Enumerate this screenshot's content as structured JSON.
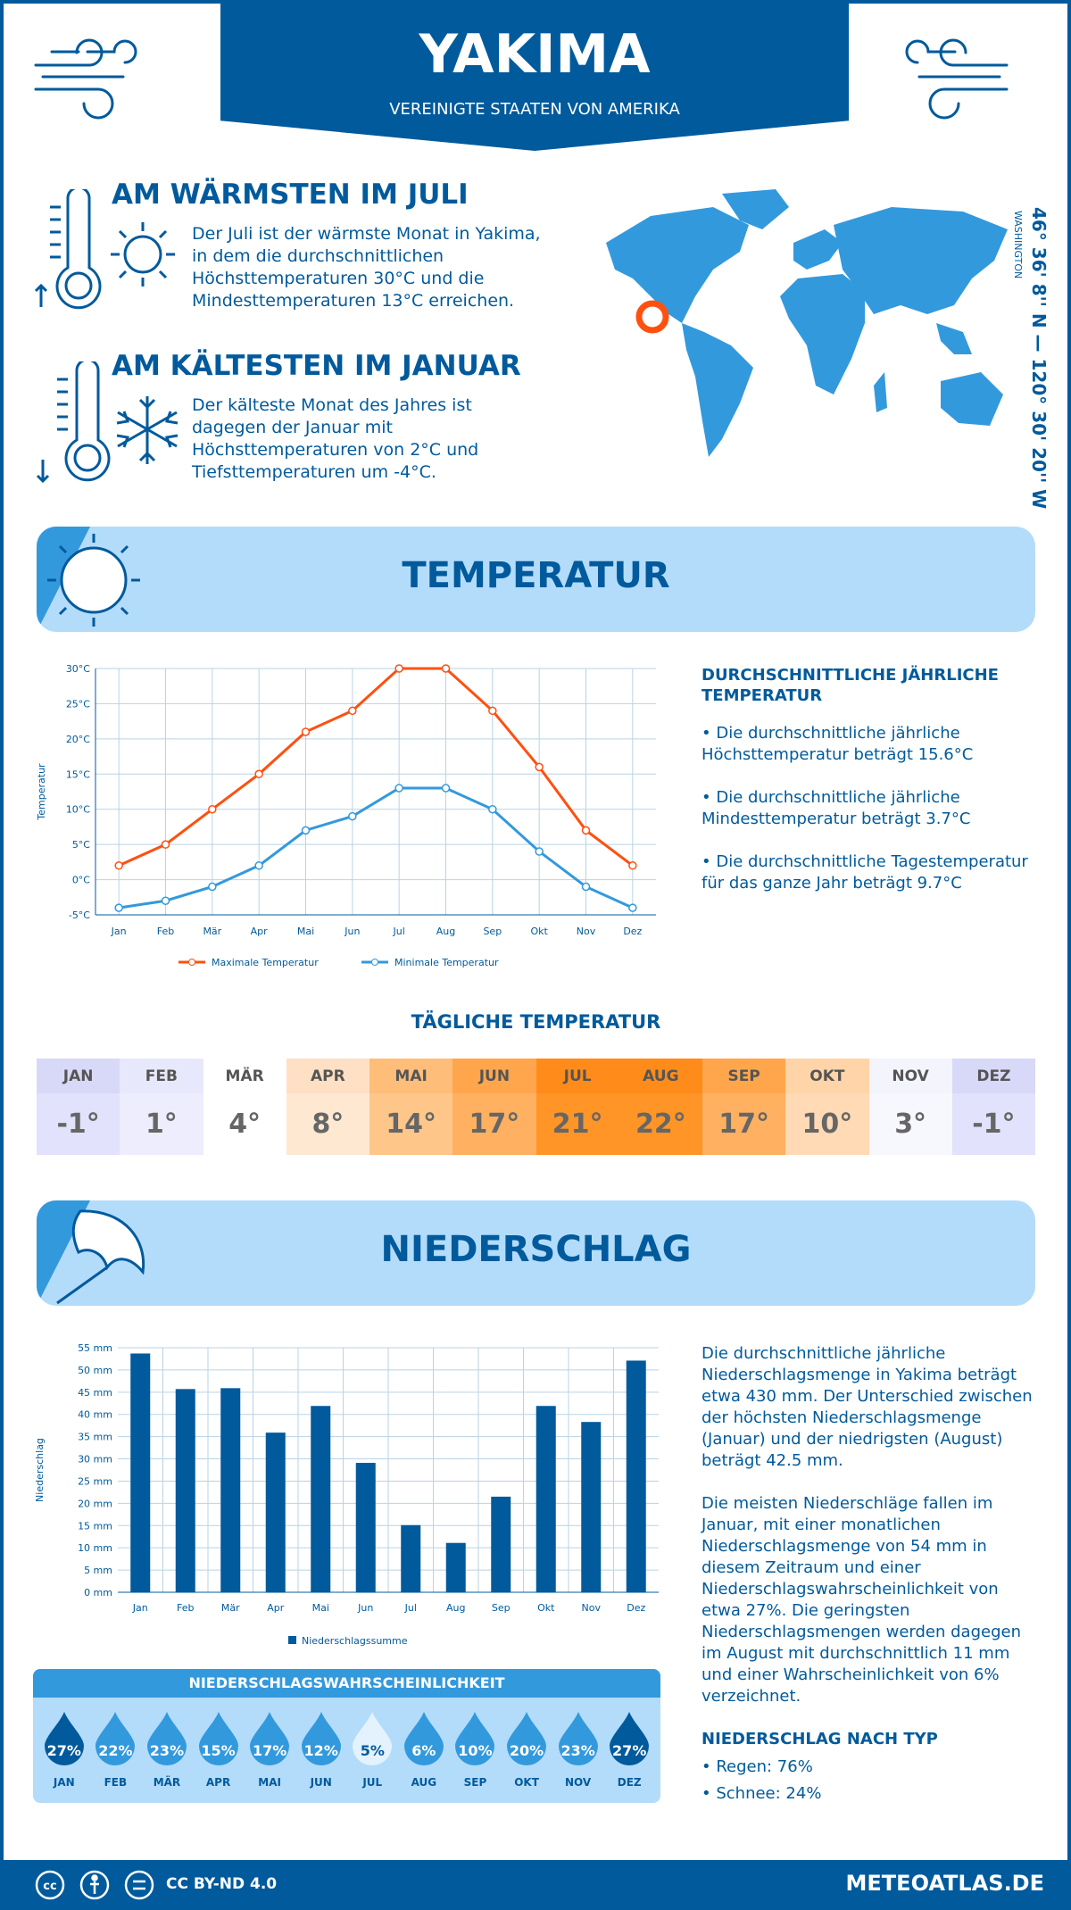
{
  "header": {
    "city": "YAKIMA",
    "country": "VEREINIGTE STAATEN VON AMERIKA"
  },
  "warmest": {
    "title": "AM WÄRMSTEN IM JULI",
    "text": "Der Juli ist der wärmste Monat in Yakima, in dem die durchschnittlichen Höchsttemperaturen 30°C und die Mindesttemperaturen 13°C erreichen."
  },
  "coldest": {
    "title": "AM KÄLTESTEN IM JANUAR",
    "text": "Der kälteste Monat des Jahres ist dagegen der Januar mit Höchsttemperaturen von 2°C und Tiefsttemperaturen um -4°C."
  },
  "location": {
    "coords": "46° 36' 8'' N — 120° 30' 20'' W",
    "region": "WASHINGTON"
  },
  "colors": {
    "dark_blue": "#005a9c",
    "light_blue": "#b3dcfa",
    "mid_blue": "#3399dd",
    "max_line": "#ff5010",
    "min_line": "#3399dd"
  },
  "temperature": {
    "title": "TEMPERATUR",
    "summary_title": "DURCHSCHNITTLICHE JÄHRLICHE TEMPERATUR",
    "bullets": [
      "• Die durchschnittliche jährliche Höchsttemperatur beträgt 15.6°C",
      "• Die durchschnittliche jährliche Mindesttemperatur beträgt 3.7°C",
      "• Die durchschnittliche Tagestemperatur für das ganze Jahr beträgt 9.7°C"
    ]
  },
  "daily": {
    "title": "TÄGLICHE TEMPERATUR",
    "months": [
      "JAN",
      "FEB",
      "MÄR",
      "APR",
      "MAI",
      "JUN",
      "JUL",
      "AUG",
      "SEP",
      "OKT",
      "NOV",
      "DEZ"
    ],
    "values": [
      "-1°",
      "1°",
      "4°",
      "8°",
      "14°",
      "17°",
      "21°",
      "22°",
      "17°",
      "10°",
      "3°",
      "-1°"
    ],
    "header_colors": [
      "#d8d8f8",
      "#e8e8fc",
      "#ffffff",
      "#ffe0c4",
      "#ffbd7a",
      "#ffa64d",
      "#ff8c1a",
      "#ff8c1a",
      "#ffa64d",
      "#ffd4a8",
      "#f4f4fc",
      "#d8d8f8"
    ],
    "value_colors": [
      "#e2e2fc",
      "#ededfe",
      "#ffffff",
      "#ffe8d2",
      "#ffc68a",
      "#ffb060",
      "#ff9526",
      "#ff9526",
      "#ffb060",
      "#ffdab4",
      "#f7f7fe",
      "#e2e2fc"
    ]
  },
  "precipitation": {
    "title": "NIEDERSCHLAG",
    "paragraphs": [
      "Die durchschnittliche jährliche Niederschlagsmenge in Yakima beträgt etwa 430 mm. Der Unterschied zwischen der höchsten Niederschlagsmenge (Januar) und der niedrigsten (August) beträgt 42.5 mm.",
      "Die meisten Niederschläge fallen im Januar, mit einer monatlichen Niederschlagsmenge von 54 mm in diesem Zeitraum und einer Niederschlagswahrscheinlichkeit von etwa 27%. Die geringsten Niederschlagsmengen werden dagegen im August mit durchschnittlich 11 mm und einer Wahrscheinlichkeit von 6% verzeichnet."
    ],
    "type_title": "NIEDERSCHLAG NACH TYP",
    "types": [
      "• Regen: 76%",
      "• Schnee: 24%"
    ],
    "prob_title": "NIEDERSCHLAGSWAHRSCHEINLICHKEIT",
    "prob_values": [
      "27%",
      "22%",
      "23%",
      "15%",
      "17%",
      "12%",
      "5%",
      "6%",
      "10%",
      "20%",
      "23%",
      "27%"
    ]
  },
  "footer": {
    "license": "CC BY-ND 4.0",
    "site": "METEOATLAS.DE"
  },
  "chart_data": [
    {
      "type": "line",
      "xlabel": "",
      "ylabel": "Temperatur",
      "categories": [
        "Jan",
        "Feb",
        "Mär",
        "Apr",
        "Mai",
        "Jun",
        "Jul",
        "Aug",
        "Sep",
        "Okt",
        "Nov",
        "Dez"
      ],
      "yticks": [
        "-5°C",
        "0°C",
        "5°C",
        "10°C",
        "15°C",
        "20°C",
        "25°C",
        "30°C"
      ],
      "ylim": [
        -5,
        30
      ],
      "grid": true,
      "legend": "bottom",
      "series": [
        {
          "name": "Maximale Temperatur",
          "values": [
            2,
            5,
            10,
            15,
            21,
            24,
            30,
            30,
            24,
            16,
            7,
            2
          ]
        },
        {
          "name": "Minimale Temperatur",
          "values": [
            -4,
            -3,
            -1,
            2,
            7,
            9,
            13,
            13,
            10,
            4,
            -1,
            -4
          ]
        }
      ]
    },
    {
      "type": "bar",
      "xlabel": "",
      "ylabel": "Niederschlag",
      "categories": [
        "Jan",
        "Feb",
        "Mär",
        "Apr",
        "Mai",
        "Jun",
        "Jul",
        "Aug",
        "Sep",
        "Okt",
        "Nov",
        "Dez"
      ],
      "yticks": [
        "0 mm",
        "5 mm",
        "10 mm",
        "15 mm",
        "20 mm",
        "25 mm",
        "30 mm",
        "35 mm",
        "40 mm",
        "45 mm",
        "50 mm",
        "55 mm"
      ],
      "ylim": [
        0,
        55
      ],
      "grid": true,
      "legend": "bottom",
      "series": [
        {
          "name": "Niederschlagssumme",
          "values": [
            53.7,
            45.7,
            45.9,
            35.9,
            41.9,
            29.1,
            15.1,
            11.1,
            21.5,
            41.9,
            38.3,
            52.1
          ]
        }
      ]
    }
  ]
}
